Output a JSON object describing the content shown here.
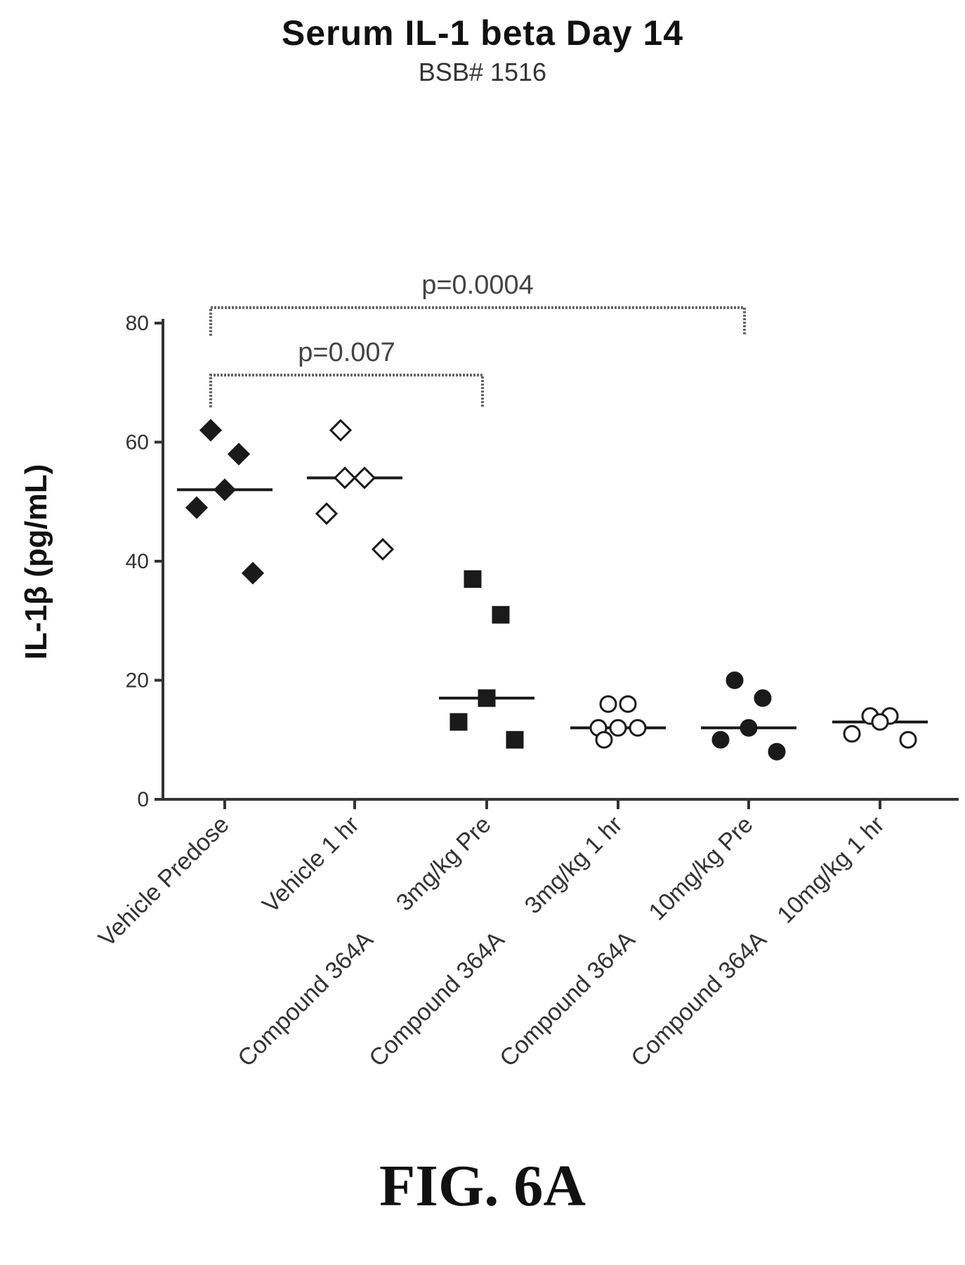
{
  "chart_data": {
    "type": "scatter",
    "title": "Serum IL-1 beta Day 14",
    "subtitle": "BSB# 1516",
    "ylabel": "IL-1β (pg/mL)",
    "xlabel": "",
    "ylim": [
      0,
      80
    ],
    "yticks": [
      "0",
      "20",
      "40",
      "60",
      "80"
    ],
    "grid": false,
    "groups": [
      {
        "line1": "Vehicle Predose",
        "line2": "",
        "marker": "diamond-filled",
        "median": 52,
        "values": [
          62,
          58,
          52,
          49,
          38
        ]
      },
      {
        "line1": "Vehicle 1 hr",
        "line2": "",
        "marker": "diamond-open",
        "median": 54,
        "values": [
          62,
          54,
          54,
          48,
          42
        ]
      },
      {
        "line1": "3mg/kg Pre",
        "line2": "Compound 364A",
        "marker": "square-filled",
        "median": 17,
        "values": [
          37,
          31,
          17,
          13,
          10
        ]
      },
      {
        "line1": "3mg/kg 1 hr",
        "line2": "Compound 364A",
        "marker": "circle-open",
        "median": 12,
        "values": [
          16,
          16,
          12,
          12,
          12,
          10
        ]
      },
      {
        "line1": "10mg/kg Pre",
        "line2": "Compound 364A",
        "marker": "circle-filled",
        "median": 12,
        "values": [
          20,
          17,
          12,
          10,
          8
        ]
      },
      {
        "line1": "10mg/kg 1 hr",
        "line2": "Compound 364A",
        "marker": "circle-open",
        "median": 13,
        "values": [
          14,
          14,
          13,
          11,
          10
        ]
      }
    ],
    "annotations": [
      {
        "text": "p=0.007",
        "from": 0,
        "to": 2
      },
      {
        "text": "p=0.0004",
        "from": 0,
        "to": 4
      }
    ]
  },
  "figure_label": "FIG. 6A"
}
